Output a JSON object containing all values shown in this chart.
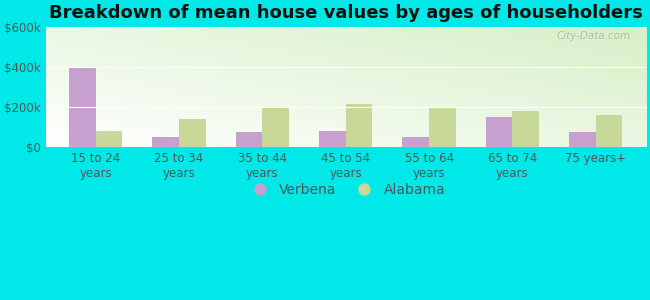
{
  "title": "Breakdown of mean house values by ages of householders",
  "categories": [
    "15 to 24\nyears",
    "25 to 34\nyears",
    "35 to 44\nyears",
    "45 to 54\nyears",
    "55 to 64\nyears",
    "65 to 74\nyears",
    "75 years+"
  ],
  "verbena_values": [
    400000,
    50000,
    75000,
    80000,
    50000,
    150000,
    75000
  ],
  "alabama_values": [
    80000,
    140000,
    195000,
    215000,
    195000,
    180000,
    160000
  ],
  "verbena_color": "#c8a0d0",
  "alabama_color": "#c8d898",
  "ylim": [
    0,
    600000
  ],
  "yticks": [
    0,
    200000,
    400000,
    600000
  ],
  "ytick_labels": [
    "$0",
    "$200k",
    "$400k",
    "$600k"
  ],
  "bg_top_right": "#ffffff",
  "bg_bottom_left": "#d8f0c8",
  "outer_background": "#00e8e8",
  "bar_width": 0.32,
  "watermark": "City-Data.com",
  "legend_labels": [
    "Verbena",
    "Alabama"
  ],
  "title_fontsize": 13,
  "tick_fontsize": 8.5,
  "legend_fontsize": 10
}
